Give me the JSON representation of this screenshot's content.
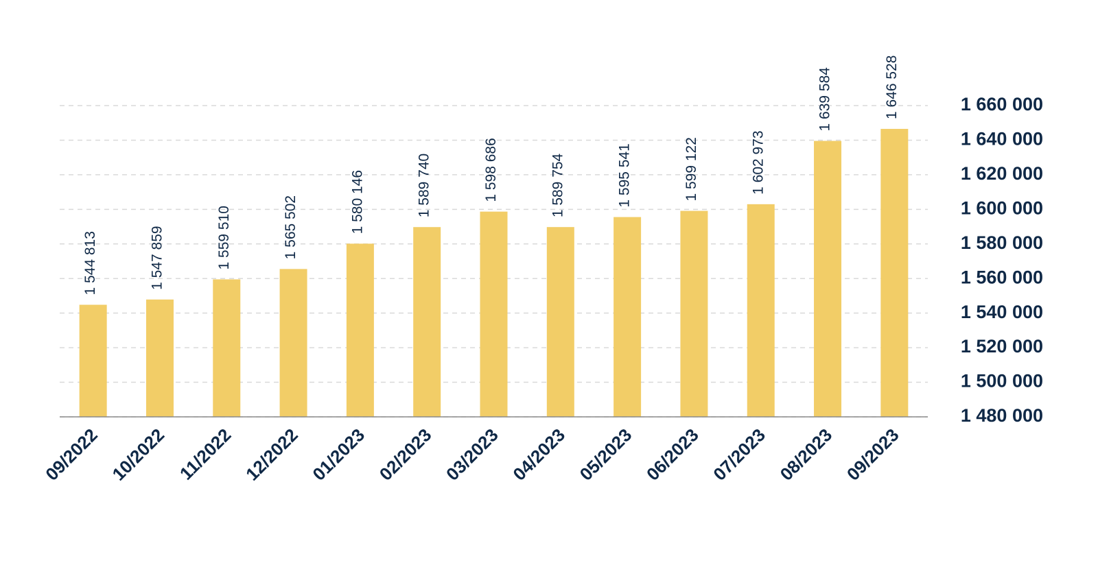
{
  "chart_data": {
    "type": "bar",
    "categories": [
      "09/2022",
      "10/2022",
      "11/2022",
      "12/2022",
      "01/2023",
      "02/2023",
      "03/2023",
      "04/2023",
      "05/2023",
      "06/2023",
      "07/2023",
      "08/2023",
      "09/2023"
    ],
    "values": [
      1544813,
      1547859,
      1559510,
      1565502,
      1580146,
      1589740,
      1598686,
      1589754,
      1595541,
      1599122,
      1602973,
      1639584,
      1646528
    ],
    "value_labels": [
      "1 544 813",
      "1 547 859",
      "1 559 510",
      "1 565 502",
      "1 580 146",
      "1 589 740",
      "1 598 686",
      "1 589 754",
      "1 595 541",
      "1 599 122",
      "1 602 973",
      "1 639 584",
      "1 646 528"
    ],
    "color": "#f2cd67",
    "ylim": [
      1480000,
      1660000
    ],
    "yticks": [
      {
        "value": 1480000,
        "label": "1 480 000"
      },
      {
        "value": 1500000,
        "label": "1 500 000"
      },
      {
        "value": 1520000,
        "label": "1 520 000"
      },
      {
        "value": 1540000,
        "label": "1 540 000"
      },
      {
        "value": 1560000,
        "label": "1 560 000"
      },
      {
        "value": 1580000,
        "label": "1 580 000"
      },
      {
        "value": 1600000,
        "label": "1 600 000"
      },
      {
        "value": 1620000,
        "label": "1 620 000"
      },
      {
        "value": 1640000,
        "label": "1 640 000"
      },
      {
        "value": 1660000,
        "label": "1 660 000"
      }
    ],
    "grid": true
  }
}
